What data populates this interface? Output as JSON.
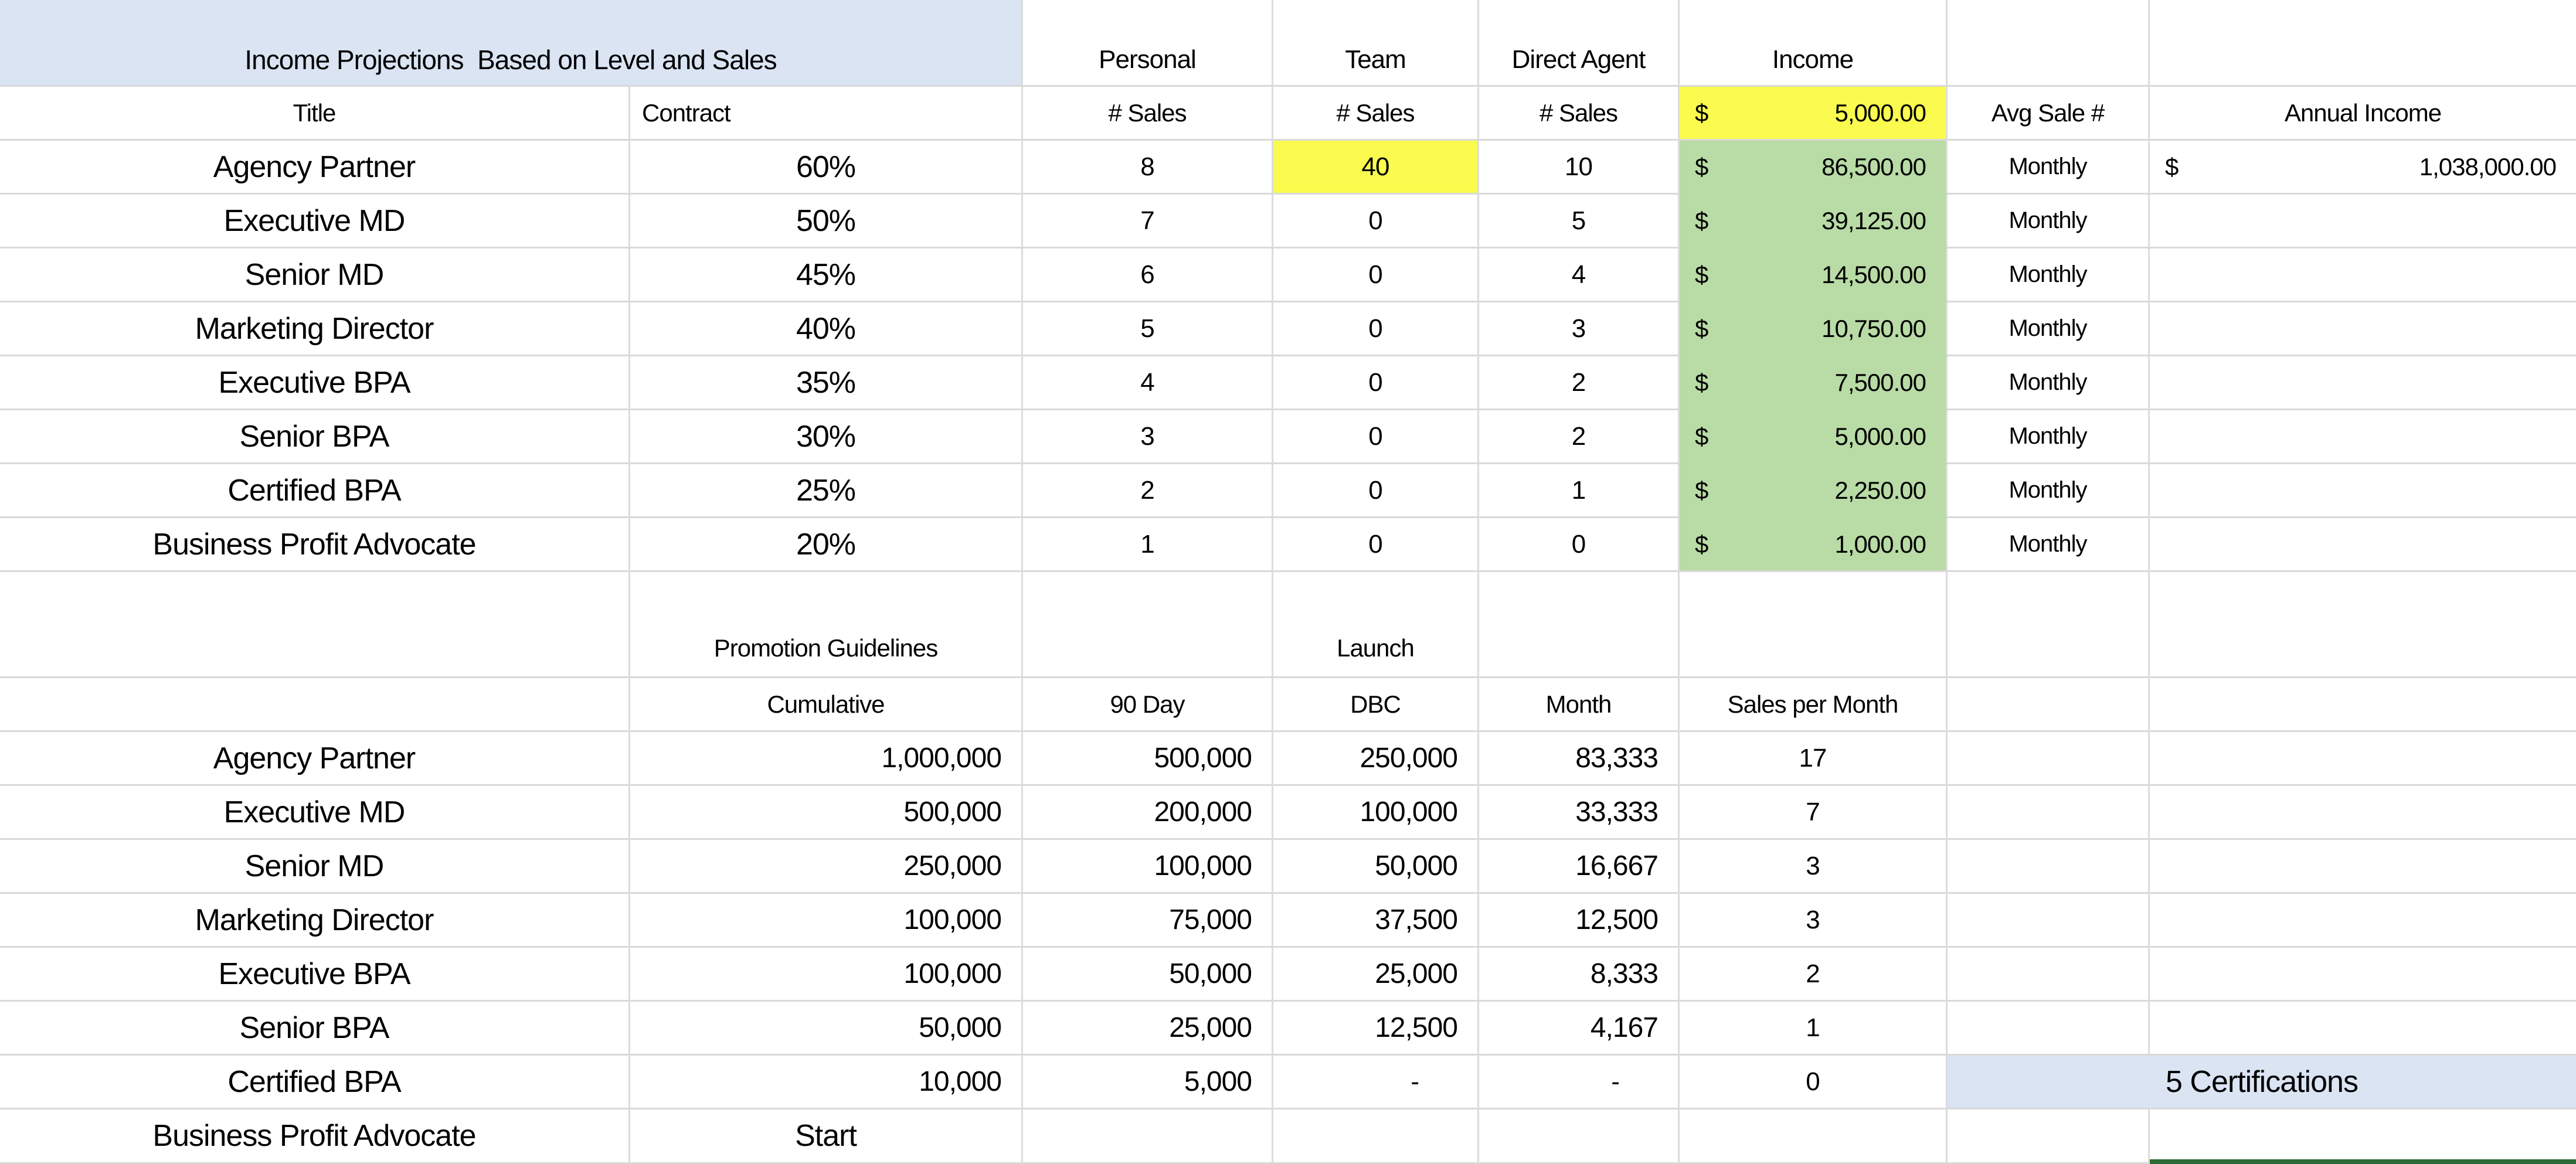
{
  "banner": {
    "title": "Income Projections  Based on Level and Sales"
  },
  "colors": {
    "banner_blue": "#dae4f3",
    "highlight_yellow": "#fafb4e",
    "income_green": "#b9dba6",
    "grid_line": "#d9d9d9",
    "selection_green": "#2d6b34"
  },
  "table1": {
    "group_headers": {
      "personal": "Personal",
      "team": "Team",
      "direct_agent": "Direct Agent",
      "income": "Income"
    },
    "headers": {
      "title": "Title",
      "contract": "Contract",
      "personal_sales": "# Sales",
      "team_sales": "# Sales",
      "direct_sales": "# Sales",
      "income_currency": "$",
      "income_value": "5,000.00",
      "avg_sale": "Avg Sale #",
      "annual_income": "Annual Income"
    },
    "rows": [
      {
        "title": "Agency Partner",
        "contract": "60%",
        "personal": "8",
        "team": "40",
        "direct": "10",
        "currency": "$",
        "income": "86,500.00",
        "avg": "Monthly",
        "annual_currency": "$",
        "annual": "1,038,000.00"
      },
      {
        "title": "Executive MD",
        "contract": "50%",
        "personal": "7",
        "team": "0",
        "direct": "5",
        "currency": "$",
        "income": "39,125.00",
        "avg": "Monthly"
      },
      {
        "title": "Senior MD",
        "contract": "45%",
        "personal": "6",
        "team": "0",
        "direct": "4",
        "currency": "$",
        "income": "14,500.00",
        "avg": "Monthly"
      },
      {
        "title": "Marketing Director",
        "contract": "40%",
        "personal": "5",
        "team": "0",
        "direct": "3",
        "currency": "$",
        "income": "10,750.00",
        "avg": "Monthly"
      },
      {
        "title": "Executive BPA",
        "contract": "35%",
        "personal": "4",
        "team": "0",
        "direct": "2",
        "currency": "$",
        "income": "7,500.00",
        "avg": "Monthly"
      },
      {
        "title": "Senior BPA",
        "contract": "30%",
        "personal": "3",
        "team": "0",
        "direct": "2",
        "currency": "$",
        "income": "5,000.00",
        "avg": "Monthly"
      },
      {
        "title": "Certified BPA",
        "contract": "25%",
        "personal": "2",
        "team": "0",
        "direct": "1",
        "currency": "$",
        "income": "2,250.00",
        "avg": "Monthly"
      },
      {
        "title": "Business Profit Advocate",
        "contract": "20%",
        "personal": "1",
        "team": "0",
        "direct": "0",
        "currency": "$",
        "income": "1,000.00",
        "avg": "Monthly"
      }
    ]
  },
  "table2": {
    "section_title": "Promotion Guidelines",
    "launch_label": "Launch",
    "headers": {
      "cumulative": "Cumulative",
      "ninety_day": "90 Day",
      "dbc": "DBC",
      "month": "Month",
      "sales_per_month": "Sales per Month"
    },
    "certifications_label": "5 Certifications",
    "rows": [
      {
        "title": "Agency Partner",
        "cumulative": "1,000,000",
        "ninety_day": "500,000",
        "dbc": "250,000",
        "month": "83,333",
        "spm": "17"
      },
      {
        "title": "Executive MD",
        "cumulative": "500,000",
        "ninety_day": "200,000",
        "dbc": "100,000",
        "month": "33,333",
        "spm": "7"
      },
      {
        "title": "Senior MD",
        "cumulative": "250,000",
        "ninety_day": "100,000",
        "dbc": "50,000",
        "month": "16,667",
        "spm": "3"
      },
      {
        "title": "Marketing Director",
        "cumulative": "100,000",
        "ninety_day": "75,000",
        "dbc": "37,500",
        "month": "12,500",
        "spm": "3"
      },
      {
        "title": "Executive BPA",
        "cumulative": "100,000",
        "ninety_day": "50,000",
        "dbc": "25,000",
        "month": "8,333",
        "spm": "2"
      },
      {
        "title": "Senior BPA",
        "cumulative": "50,000",
        "ninety_day": "25,000",
        "dbc": "12,500",
        "month": "4,167",
        "spm": "1"
      },
      {
        "title": "Certified BPA",
        "cumulative": "10,000",
        "ninety_day": "5,000",
        "dbc": "-",
        "month": "-",
        "spm": "0"
      },
      {
        "title": "Business Profit Advocate",
        "cumulative": "Start",
        "ninety_day": "",
        "dbc": "",
        "month": "",
        "spm": ""
      }
    ]
  }
}
